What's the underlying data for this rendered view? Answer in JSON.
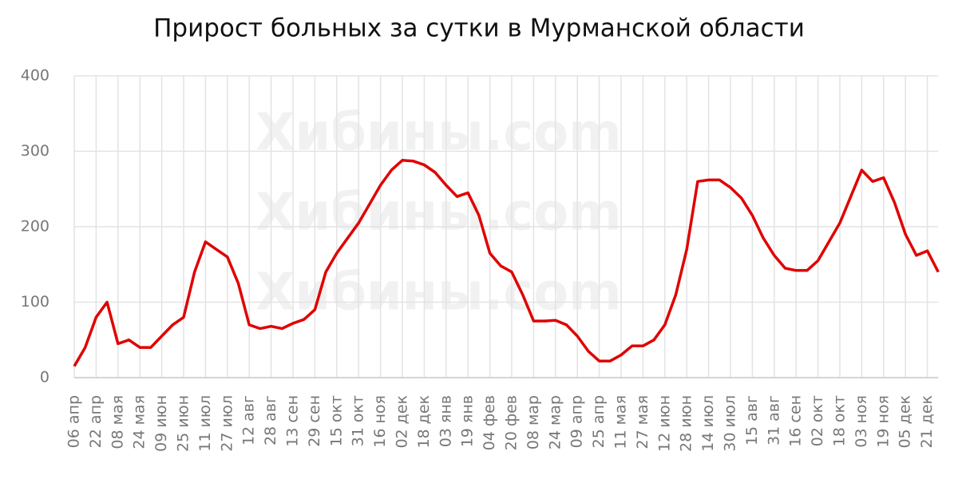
{
  "chart_data": {
    "type": "line",
    "title": "Прирост больных за сутки в Мурманской области",
    "watermark": "Хибины.com",
    "categories": [
      "06 апр",
      null,
      "22 апр",
      null,
      "08 мая",
      null,
      "24 мая",
      null,
      "09 июн",
      null,
      "25 июн",
      null,
      "11 июл",
      null,
      "27 июл",
      null,
      "12 авг",
      null,
      "28 авг",
      null,
      "13 сен",
      null,
      "29 сен",
      null,
      "15 окт",
      null,
      "31 окт",
      null,
      "16 ноя",
      null,
      "02 дек",
      null,
      "18 дек",
      null,
      "03 янв",
      null,
      "19 янв",
      null,
      "04 фев",
      null,
      "20 фев",
      null,
      "08 мар",
      null,
      "24 мар",
      null,
      "09 апр",
      null,
      "25 апр",
      null,
      "11 мая",
      null,
      "27 мая",
      null,
      "12 июн",
      null,
      "28 июн",
      null,
      "14 июл",
      null,
      "30 июл",
      null,
      "15 авг",
      null,
      "31 авг",
      null,
      "16 сен",
      null,
      "02 окт",
      null,
      "18 окт",
      null,
      "03 ноя",
      null,
      "19 ноя",
      null,
      "05 дек",
      null,
      "21 дек",
      null
    ],
    "series": [
      {
        "color": "#e00000",
        "values": [
          15,
          40,
          80,
          100,
          45,
          50,
          40,
          40,
          55,
          70,
          80,
          140,
          180,
          170,
          160,
          125,
          70,
          65,
          68,
          65,
          72,
          77,
          90,
          140,
          165,
          185,
          205,
          230,
          255,
          275,
          288,
          287,
          282,
          272,
          255,
          240,
          245,
          215,
          165,
          148,
          140,
          110,
          75,
          75,
          76,
          70,
          55,
          35,
          22,
          22,
          30,
          42,
          42,
          50,
          70,
          110,
          170,
          260,
          262,
          262,
          252,
          238,
          215,
          185,
          162,
          145,
          142,
          142,
          155,
          180,
          205,
          240,
          275,
          260,
          265,
          232,
          190,
          162,
          168,
          140
        ]
      }
    ],
    "ylim": [
      0,
      400
    ],
    "yticks": [
      0,
      100,
      200,
      300,
      400
    ],
    "grid": true
  }
}
